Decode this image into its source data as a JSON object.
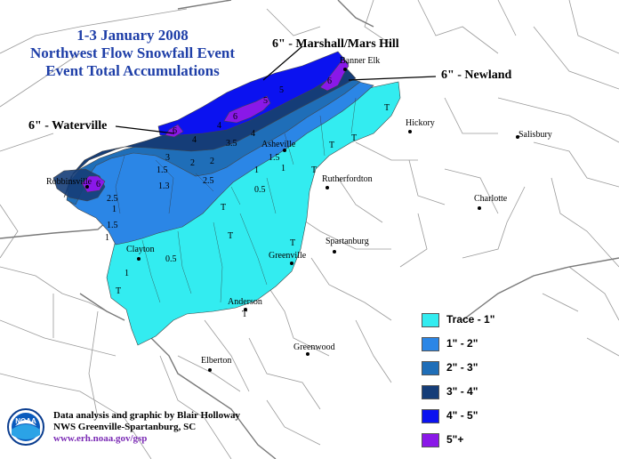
{
  "title": {
    "line1": "1-3 January 2008",
    "line2": "Northwest Flow Snowfall Event",
    "line3": "Event Total Accumulations"
  },
  "callouts": {
    "marshall": "6\" - Marshall/Mars Hill",
    "newland": "6\" - Newland",
    "waterville": "6\" - Waterville"
  },
  "cities": {
    "banner_elk": "Banner Elk",
    "hickory": "Hickory",
    "salisbury": "Salisbury",
    "asheville": "Asheville",
    "rutherfordton": "Rutherfordton",
    "charlotte": "Charlotte",
    "robbinsville": "Robbinsville",
    "spartanburg": "Spartanburg",
    "greenville": "Greenville",
    "clayton": "Clayton",
    "anderson": "Anderson",
    "greenwood": "Greenwood",
    "elberton": "Elberton"
  },
  "contour_labels": {
    "t1": "T",
    "t2": "T",
    "t3": "T",
    "t4": "T",
    "t5": "T",
    "t6": "T",
    "t7": "T",
    "t8": "T",
    "t9": "T",
    "c1": "1",
    "c2": "1",
    "c3": "1",
    "c4": "1",
    "c5": "1",
    "c15a": "1.5",
    "c15b": "1.5",
    "c15c": "1.5",
    "c13": "1.3",
    "c05a": "0.5",
    "c05b": "0.5",
    "c2a": "2",
    "c2b": "2",
    "c25a": "2.5",
    "c25b": "2.5",
    "c3a": "3",
    "c35": "3.5",
    "c4a": "4",
    "c4b": "4",
    "c4c": "4",
    "c5a": "5",
    "c5b": "5",
    "c6a": "6",
    "c6b": "6",
    "c6c": "6",
    "c6d": "6"
  },
  "legend": {
    "items": [
      {
        "label": "Trace - 1\"",
        "color": "#33ecf0"
      },
      {
        "label": "1\" - 2\"",
        "color": "#2b86e6"
      },
      {
        "label": "2\" - 3\"",
        "color": "#1f6eb8"
      },
      {
        "label": "3\" - 4\"",
        "color": "#153d78"
      },
      {
        "label": "4\" - 5\"",
        "color": "#0b12f0"
      },
      {
        "label": "5\"+",
        "color": "#8a18e8"
      }
    ]
  },
  "credit": {
    "line1": "Data analysis and graphic by Blair Holloway",
    "line2": "NWS Greenville-Spartanburg, SC",
    "url": "www.erh.noaa.gov/gsp"
  },
  "logo": {
    "text": "NOAA"
  },
  "colors": {
    "trace": "#33ecf0",
    "one_two": "#2b86e6",
    "two_three": "#1f6eb8",
    "three_four": "#153d78",
    "four_five": "#0b12f0",
    "five_plus": "#8a18e8",
    "title": "#1f3fa8",
    "url": "#7b2bb5"
  }
}
